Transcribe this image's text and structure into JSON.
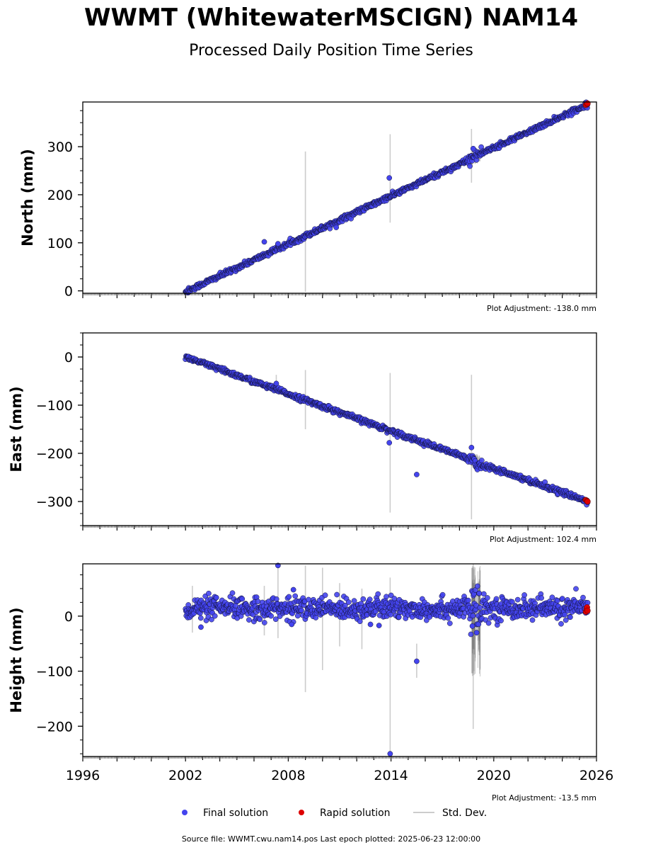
{
  "title": "WWMT (WhitewaterMSCIGN) NAM14",
  "subtitle": "Processed Daily Position Time Series",
  "source_note": "Source file: WWMT.cwu.nam14.pos  Last epoch plotted: 2025-06-23 12:00:00",
  "legend": [
    {
      "label": "Final solution",
      "color": "#4444ee"
    },
    {
      "label": "Rapid solution",
      "color": "#dd0000"
    },
    {
      "label": "Std. Dev.",
      "color": "#cccccc"
    }
  ],
  "colors": {
    "final": "#4444ee",
    "rapid": "#dd0000",
    "stddev": "#cccccc",
    "stddev_dark": "#666666"
  },
  "chart_data": [
    {
      "type": "scatter",
      "ylabel": "North (mm)",
      "adjustment": "Plot Adjustment: -138.0 mm",
      "xlim": [
        1996,
        2026
      ],
      "ylim": [
        -5,
        393
      ],
      "yticks": [
        0,
        100,
        200,
        300
      ],
      "xticks": [],
      "start": {
        "x": 2002.0,
        "y": -2
      },
      "end": {
        "x": 2025.48,
        "y": 388
      },
      "kink": {
        "x": 2018.9,
        "dy": 5
      },
      "noise_sd": 2.5,
      "outliers": [
        {
          "x": 2006.6,
          "y": 102
        },
        {
          "x": 2013.9,
          "y": 235
        },
        {
          "x": 2010.8,
          "y": 132
        },
        {
          "x": 2007.4,
          "y": 98
        },
        {
          "x": 2018.8,
          "y": 296
        }
      ],
      "stddev_bars": [
        {
          "x": 2009.0,
          "lo": -2,
          "hi": 290
        },
        {
          "x": 2013.95,
          "lo": 142,
          "hi": 326
        },
        {
          "x": 2018.7,
          "lo": 225,
          "hi": 337
        }
      ],
      "rapid": [
        {
          "x": 2025.38,
          "y": 387
        },
        {
          "x": 2025.45,
          "y": 389
        },
        {
          "x": 2025.48,
          "y": 390
        }
      ]
    },
    {
      "type": "scatter",
      "ylabel": "East (mm)",
      "adjustment": "Plot Adjustment: 102.4 mm",
      "xlim": [
        1996,
        2026
      ],
      "ylim": [
        -350,
        50
      ],
      "yticks": [
        0,
        -100,
        -200,
        -300
      ],
      "xticks": [],
      "start": {
        "x": 2002.0,
        "y": 0
      },
      "end": {
        "x": 2025.48,
        "y": -300
      },
      "kink": {
        "x": 2018.9,
        "dy": -8
      },
      "noise_sd": 2.5,
      "outliers": [
        {
          "x": 2013.9,
          "y": -178
        },
        {
          "x": 2015.5,
          "y": -244
        },
        {
          "x": 2007.3,
          "y": -55
        },
        {
          "x": 2018.7,
          "y": -188
        }
      ],
      "stddev_bars": [
        {
          "x": 2009.0,
          "lo": -150,
          "hi": -27
        },
        {
          "x": 2013.95,
          "lo": -323,
          "hi": -33
        },
        {
          "x": 2018.7,
          "lo": -337,
          "hi": -37
        },
        {
          "x": 2007.3,
          "lo": -70,
          "hi": -37
        }
      ],
      "rapid": [
        {
          "x": 2025.38,
          "y": -297
        },
        {
          "x": 2025.45,
          "y": -299
        },
        {
          "x": 2025.48,
          "y": -300
        }
      ]
    },
    {
      "type": "scatter",
      "ylabel": "Height (mm)",
      "adjustment": "Plot Adjustment: -13.5 mm",
      "xlim": [
        1996,
        2026
      ],
      "ylim": [
        -255,
        95
      ],
      "yticks": [
        0,
        -100,
        -200
      ],
      "xticks": [
        1996,
        2002,
        2008,
        2014,
        2020,
        2026
      ],
      "start": {
        "x": 2002.0,
        "y": 14
      },
      "end": {
        "x": 2025.48,
        "y": 14
      },
      "kink": {
        "x": 2018.9,
        "dy": 0
      },
      "noise_sd": 10,
      "outliers": [
        {
          "x": 2007.4,
          "y": 92
        },
        {
          "x": 2013.95,
          "y": -250
        },
        {
          "x": 2015.5,
          "y": -82
        },
        {
          "x": 2012.8,
          "y": -15
        },
        {
          "x": 2013.3,
          "y": -17
        },
        {
          "x": 2008.2,
          "y": -15
        },
        {
          "x": 2002.9,
          "y": -20
        },
        {
          "x": 2019.0,
          "y": -30
        },
        {
          "x": 2018.75,
          "y": -18
        },
        {
          "x": 2008.3,
          "y": 48
        }
      ],
      "stddev_bars": [
        {
          "x": 2009.0,
          "lo": -138,
          "hi": 92
        },
        {
          "x": 2010.0,
          "lo": -98,
          "hi": 88
        },
        {
          "x": 2011.0,
          "lo": -55,
          "hi": 60
        },
        {
          "x": 2012.3,
          "lo": -60,
          "hi": 50
        },
        {
          "x": 2013.95,
          "lo": -250,
          "hi": 70
        },
        {
          "x": 2015.5,
          "lo": -112,
          "hi": -50
        },
        {
          "x": 2007.4,
          "lo": -40,
          "hi": 92
        },
        {
          "x": 2018.8,
          "lo": -205,
          "hi": 95
        },
        {
          "x": 2002.4,
          "lo": -30,
          "hi": 55
        },
        {
          "x": 2006.6,
          "lo": -35,
          "hi": 55
        }
      ],
      "rapid": [
        {
          "x": 2025.38,
          "y": 8
        },
        {
          "x": 2025.42,
          "y": 13
        },
        {
          "x": 2025.45,
          "y": 16
        },
        {
          "x": 2025.48,
          "y": 10
        }
      ]
    }
  ]
}
